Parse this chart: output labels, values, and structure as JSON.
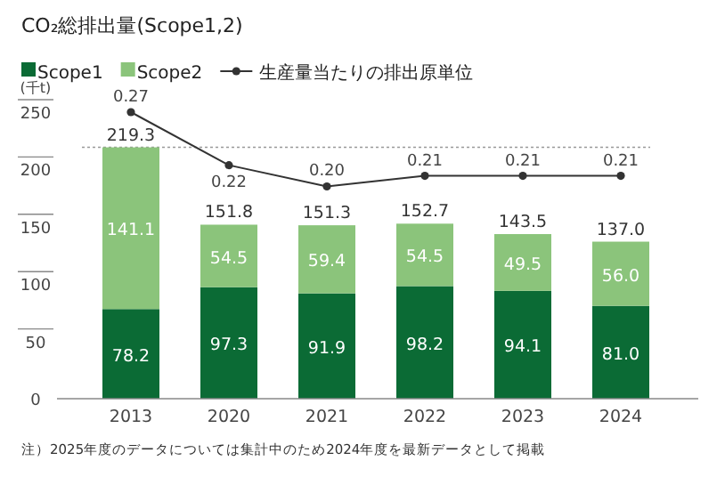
{
  "chart_data": {
    "type": "bar",
    "title": "CO₂総排出量(Scope1,2)",
    "ylabel": "(千t)",
    "stacked": true,
    "categories": [
      "2013",
      "2020",
      "2021",
      "2022",
      "2023",
      "2024"
    ],
    "series": [
      {
        "name": "Scope1",
        "color": "#0b6b35",
        "values": [
          78.2,
          97.3,
          91.9,
          98.2,
          94.1,
          81.0
        ],
        "value_labels": [
          "78.2",
          "97.3",
          "91.9",
          "98.2",
          "94.1",
          "81.0"
        ]
      },
      {
        "name": "Scope2",
        "color": "#8bc47b",
        "values": [
          141.1,
          54.5,
          59.4,
          54.5,
          49.5,
          56.0
        ],
        "value_labels": [
          "141.1",
          "54.5",
          "59.4",
          "54.5",
          "49.5",
          "56.0"
        ]
      },
      {
        "name": "生産量当たりの排出原単位",
        "type": "line",
        "axis": "y2",
        "color": "#333333",
        "marker": "circle",
        "values": [
          0.27,
          0.22,
          0.2,
          0.21,
          0.21,
          0.21
        ],
        "value_labels": [
          "0.27",
          "0.22",
          "0.20",
          "0.21",
          "0.21",
          "0.21"
        ]
      }
    ],
    "totals": [
      "219.3",
      "151.8",
      "151.3",
      "152.7",
      "143.5",
      "137.0"
    ],
    "ylim": [
      0,
      250
    ],
    "yticks": [
      0,
      50,
      100,
      150,
      200,
      250
    ],
    "ref_lines": [
      {
        "axis": "y",
        "value": 219.3,
        "color": "#999999",
        "line_style": "dotted"
      }
    ],
    "legend": "top left",
    "annotations": [
      "注）2025年度のデータについては集計中のため2024年度を最新データとして掲載"
    ]
  }
}
